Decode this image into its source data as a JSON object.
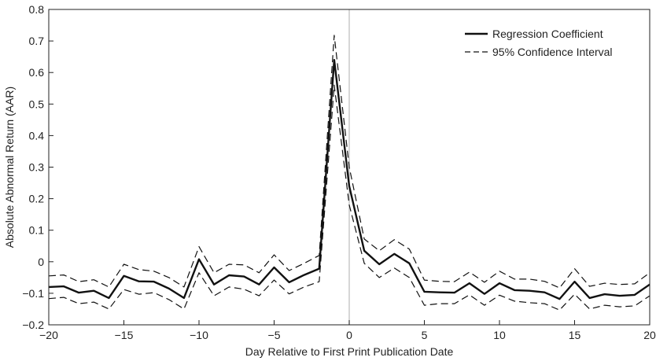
{
  "chart_data": {
    "type": "line",
    "xlabel": "Day Relative to First Print Publication Date",
    "ylabel": "Absolute Abnormal Return (AAR)",
    "xlim": [
      -20,
      20
    ],
    "ylim": [
      -0.2,
      0.8
    ],
    "xticks": [
      -20,
      -15,
      -10,
      -5,
      0,
      5,
      10,
      15,
      20
    ],
    "xtick_labels": [
      "−20",
      "−15",
      "−10",
      "−5",
      "0",
      "5",
      "10",
      "15",
      "20"
    ],
    "yticks": [
      -0.2,
      -0.1,
      0,
      0.1,
      0.2,
      0.3,
      0.4,
      0.5,
      0.6,
      0.7,
      0.8
    ],
    "ytick_labels": [
      "−0.2",
      "−0.1",
      "0",
      "0.1",
      "0.2",
      "0.3",
      "0.4",
      "0.5",
      "0.6",
      "0.7",
      "0.8"
    ],
    "reference_line_x": 0,
    "grid": false,
    "legend_position": "top-right",
    "x": [
      -20,
      -19,
      -18,
      -17,
      -16,
      -15,
      -14,
      -13,
      -12,
      -11,
      -10,
      -9,
      -8,
      -7,
      -6,
      -5,
      -4,
      -3,
      -2,
      -1,
      0,
      1,
      2,
      3,
      4,
      5,
      6,
      7,
      8,
      9,
      10,
      11,
      12,
      13,
      14,
      15,
      16,
      17,
      18,
      19,
      20
    ],
    "series": [
      {
        "name": "Regression Coefficient",
        "style": "solid",
        "color": "#111111",
        "values": [
          -0.08,
          -0.078,
          -0.098,
          -0.092,
          -0.115,
          -0.045,
          -0.062,
          -0.063,
          -0.085,
          -0.115,
          0.008,
          -0.072,
          -0.043,
          -0.047,
          -0.072,
          -0.018,
          -0.065,
          -0.042,
          -0.022,
          0.64,
          0.24,
          0.035,
          -0.008,
          0.025,
          -0.005,
          -0.095,
          -0.097,
          -0.098,
          -0.068,
          -0.102,
          -0.068,
          -0.09,
          -0.092,
          -0.097,
          -0.118,
          -0.063,
          -0.115,
          -0.103,
          -0.108,
          -0.105,
          -0.072
        ]
      },
      {
        "name": "95% Confidence Interval",
        "style": "dashed",
        "color": "#111111",
        "values": [
          -0.045,
          -0.042,
          -0.063,
          -0.057,
          -0.08,
          -0.008,
          -0.025,
          -0.03,
          -0.05,
          -0.08,
          0.048,
          -0.035,
          -0.008,
          -0.01,
          -0.035,
          0.022,
          -0.028,
          -0.005,
          0.02,
          0.718,
          0.3,
          0.072,
          0.035,
          0.07,
          0.04,
          -0.058,
          -0.062,
          -0.063,
          -0.033,
          -0.065,
          -0.03,
          -0.055,
          -0.055,
          -0.062,
          -0.083,
          -0.022,
          -0.078,
          -0.068,
          -0.072,
          -0.07,
          -0.035
        ]
      },
      {
        "name": "",
        "style": "dashed",
        "color": "#111111",
        "values": [
          -0.117,
          -0.113,
          -0.133,
          -0.128,
          -0.15,
          -0.088,
          -0.103,
          -0.098,
          -0.12,
          -0.15,
          -0.035,
          -0.108,
          -0.08,
          -0.087,
          -0.108,
          -0.058,
          -0.102,
          -0.08,
          -0.063,
          0.56,
          0.18,
          -0.005,
          -0.05,
          -0.02,
          -0.05,
          -0.138,
          -0.133,
          -0.133,
          -0.105,
          -0.138,
          -0.106,
          -0.125,
          -0.13,
          -0.133,
          -0.153,
          -0.103,
          -0.15,
          -0.138,
          -0.143,
          -0.14,
          -0.108
        ]
      }
    ],
    "legend": [
      {
        "label": "Regression Coefficient",
        "style": "solid"
      },
      {
        "label": "95% Confidence Interval",
        "style": "dashed"
      }
    ]
  }
}
